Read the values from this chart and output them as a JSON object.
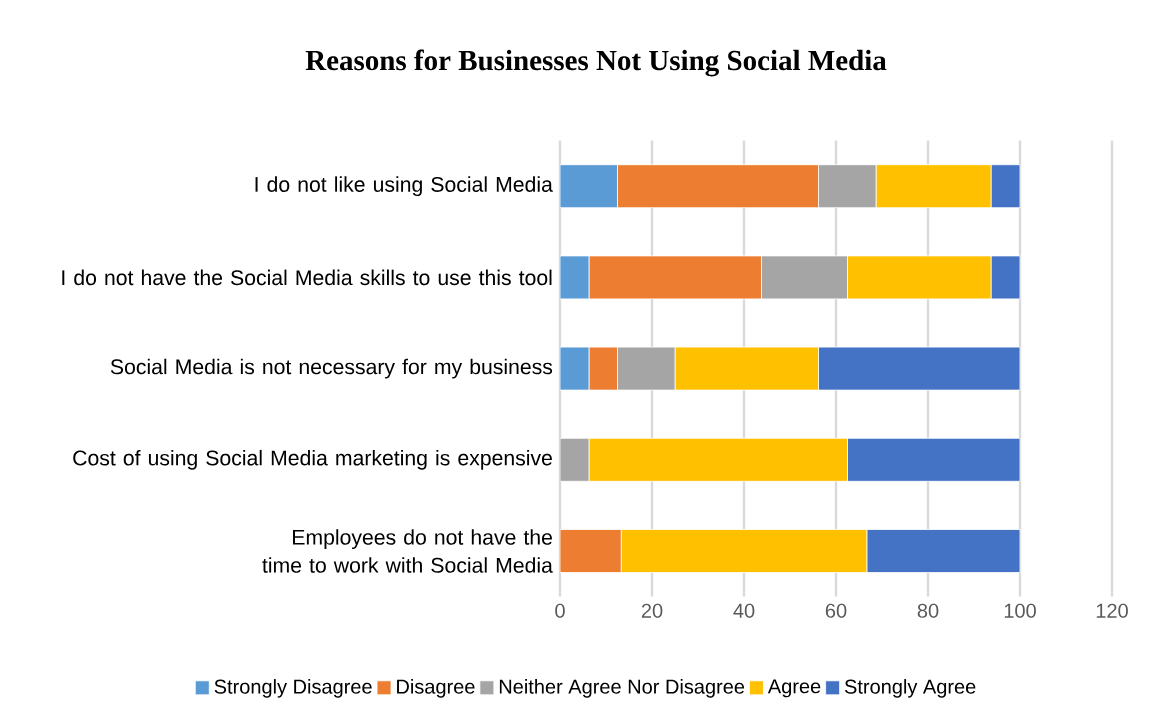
{
  "chart_data": {
    "type": "bar",
    "orientation": "horizontal",
    "stacked": true,
    "title": "Reasons for Businesses Not Using Social Media",
    "categories": [
      "I do not like using Social Media",
      "I do not have the Social Media skills to use this tool",
      "Social Media is not necessary for my business",
      "Cost of using Social Media marketing is expensive",
      "Employees do not have the time to work with Social Media"
    ],
    "series": [
      {
        "name": "Strongly Disagree",
        "color": "#5b9bd5",
        "values": [
          12.5,
          6.3,
          6.3,
          0,
          0
        ]
      },
      {
        "name": "Disagree",
        "color": "#ed7d31",
        "values": [
          43.7,
          37.5,
          6.2,
          0,
          13.3
        ]
      },
      {
        "name": "Neither Agree Nor Disagree",
        "color": "#a5a5a5",
        "values": [
          12.5,
          18.7,
          12.5,
          6.3,
          0
        ]
      },
      {
        "name": "Agree",
        "color": "#ffc000",
        "values": [
          25,
          31.2,
          31.2,
          56.2,
          53.4
        ]
      },
      {
        "name": "Strongly Agree",
        "color": "#4472c4",
        "values": [
          6.3,
          6.3,
          43.8,
          37.5,
          33.3
        ]
      }
    ],
    "xlim": [
      0,
      120
    ],
    "xticks": [
      0,
      20,
      40,
      60,
      80,
      100,
      120
    ],
    "grid": "x",
    "legend": "bottom"
  }
}
